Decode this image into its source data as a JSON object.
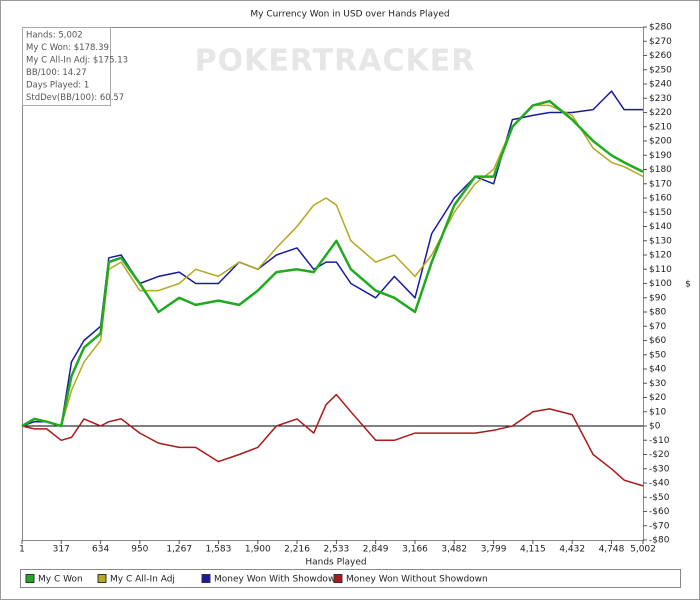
{
  "chart_data": {
    "type": "line",
    "title": "My Currency Won in USD over Hands Played",
    "x_label": "Hands Played",
    "y_label": "$",
    "watermark": "POKERTRACKER",
    "annotations": [
      "Hands: 5,002",
      "My C Won: $178.39",
      "My C All-In Adj: $175.13",
      "BB/100: 14.27",
      "Days Played: 1",
      "StdDev(BB/100): 60.57"
    ],
    "x": [
      1,
      100,
      200,
      317,
      400,
      500,
      634,
      700,
      800,
      950,
      1100,
      1267,
      1400,
      1583,
      1750,
      1900,
      2050,
      2216,
      2350,
      2450,
      2533,
      2650,
      2849,
      3000,
      3166,
      3300,
      3482,
      3650,
      3799,
      3950,
      4115,
      4250,
      4432,
      4600,
      4748,
      4850,
      5002
    ],
    "series": [
      {
        "name": "My C Won",
        "color": "#1faa1f",
        "values": [
          0,
          5,
          3,
          0,
          35,
          55,
          65,
          115,
          118,
          100,
          80,
          90,
          85,
          88,
          85,
          95,
          108,
          110,
          108,
          120,
          130,
          110,
          95,
          90,
          80,
          115,
          155,
          175,
          175,
          210,
          225,
          228,
          215,
          200,
          190,
          185,
          178.39
        ]
      },
      {
        "name": "My C All-In Adj",
        "color": "#b3a81e",
        "values": [
          0,
          5,
          3,
          0,
          25,
          45,
          60,
          110,
          115,
          95,
          95,
          100,
          110,
          105,
          115,
          110,
          125,
          140,
          155,
          160,
          155,
          130,
          115,
          120,
          105,
          120,
          150,
          170,
          180,
          210,
          225,
          225,
          218,
          195,
          185,
          182,
          175.13
        ]
      },
      {
        "name": "Money Won With Showdown",
        "color": "#1a1aa0",
        "values": [
          0,
          3,
          3,
          0,
          45,
          60,
          70,
          118,
          120,
          100,
          105,
          108,
          100,
          100,
          115,
          110,
          120,
          125,
          110,
          115,
          115,
          100,
          90,
          105,
          90,
          135,
          160,
          175,
          170,
          215,
          218,
          220,
          220,
          222,
          235,
          222,
          222
        ]
      },
      {
        "name": "Money Won Without Showdown",
        "color": "#aa1a1a",
        "values": [
          0,
          -2,
          -2,
          -10,
          -8,
          5,
          0,
          3,
          5,
          -5,
          -12,
          -15,
          -15,
          -25,
          -20,
          -15,
          0,
          5,
          -5,
          15,
          22,
          10,
          -10,
          -10,
          -5,
          -5,
          -5,
          -5,
          -3,
          0,
          10,
          12,
          8,
          -20,
          -30,
          -38,
          -42
        ]
      }
    ],
    "xlim": [
      1,
      5002
    ],
    "xticks": [
      1,
      317,
      634,
      950,
      {
        "value": 1267,
        "label": "1,267"
      },
      {
        "value": 1583,
        "label": "1,583"
      },
      {
        "value": 1900,
        "label": "1,900"
      },
      {
        "value": 2216,
        "label": "2,216"
      },
      {
        "value": 2533,
        "label": "2,533"
      },
      {
        "value": 2849,
        "label": "2,849"
      },
      {
        "value": 3166,
        "label": "3,166"
      },
      {
        "value": 3482,
        "label": "3,482"
      },
      {
        "value": 3799,
        "label": "3,799"
      },
      {
        "value": 4115,
        "label": "4,115"
      },
      {
        "value": 4432,
        "label": "4,432"
      },
      {
        "value": 4748,
        "label": "4,748"
      },
      {
        "value": 5002,
        "label": "5,002"
      }
    ],
    "ylim": [
      -80,
      280
    ],
    "yticks": [
      {
        "value": 280,
        "label": "$280"
      },
      {
        "value": 270,
        "label": "$270"
      },
      {
        "value": 260,
        "label": "$260"
      },
      {
        "value": 250,
        "label": "$250"
      },
      {
        "value": 240,
        "label": "$240"
      },
      {
        "value": 230,
        "label": "$230"
      },
      {
        "value": 220,
        "label": "$220"
      },
      {
        "value": 210,
        "label": "$210"
      },
      {
        "value": 200,
        "label": "$200"
      },
      {
        "value": 190,
        "label": "$190"
      },
      {
        "value": 180,
        "label": "$180"
      },
      {
        "value": 170,
        "label": "$170"
      },
      {
        "value": 160,
        "label": "$160"
      },
      {
        "value": 150,
        "label": "$150"
      },
      {
        "value": 140,
        "label": "$140"
      },
      {
        "value": 130,
        "label": "$130"
      },
      {
        "value": 120,
        "label": "$120"
      },
      {
        "value": 110,
        "label": "$110"
      },
      {
        "value": 100,
        "label": "$100"
      },
      {
        "value": 90,
        "label": "$90"
      },
      {
        "value": 80,
        "label": "$80"
      },
      {
        "value": 70,
        "label": "$70"
      },
      {
        "value": 60,
        "label": "$60"
      },
      {
        "value": 50,
        "label": "$50"
      },
      {
        "value": 40,
        "label": "$40"
      },
      {
        "value": 30,
        "label": "$30"
      },
      {
        "value": 20,
        "label": "$20"
      },
      {
        "value": 10,
        "label": "$10"
      },
      {
        "value": 0,
        "label": "$0"
      },
      {
        "value": -10,
        "label": "-$10"
      },
      {
        "value": -20,
        "label": "-$20"
      },
      {
        "value": -30,
        "label": "-$30"
      },
      {
        "value": -40,
        "label": "-$40"
      },
      {
        "value": -50,
        "label": "-$50"
      },
      {
        "value": -60,
        "label": "-$60"
      },
      {
        "value": -70,
        "label": "-$70"
      },
      {
        "value": -80,
        "label": "-$80"
      }
    ],
    "grid": false,
    "legend": "bottom"
  }
}
